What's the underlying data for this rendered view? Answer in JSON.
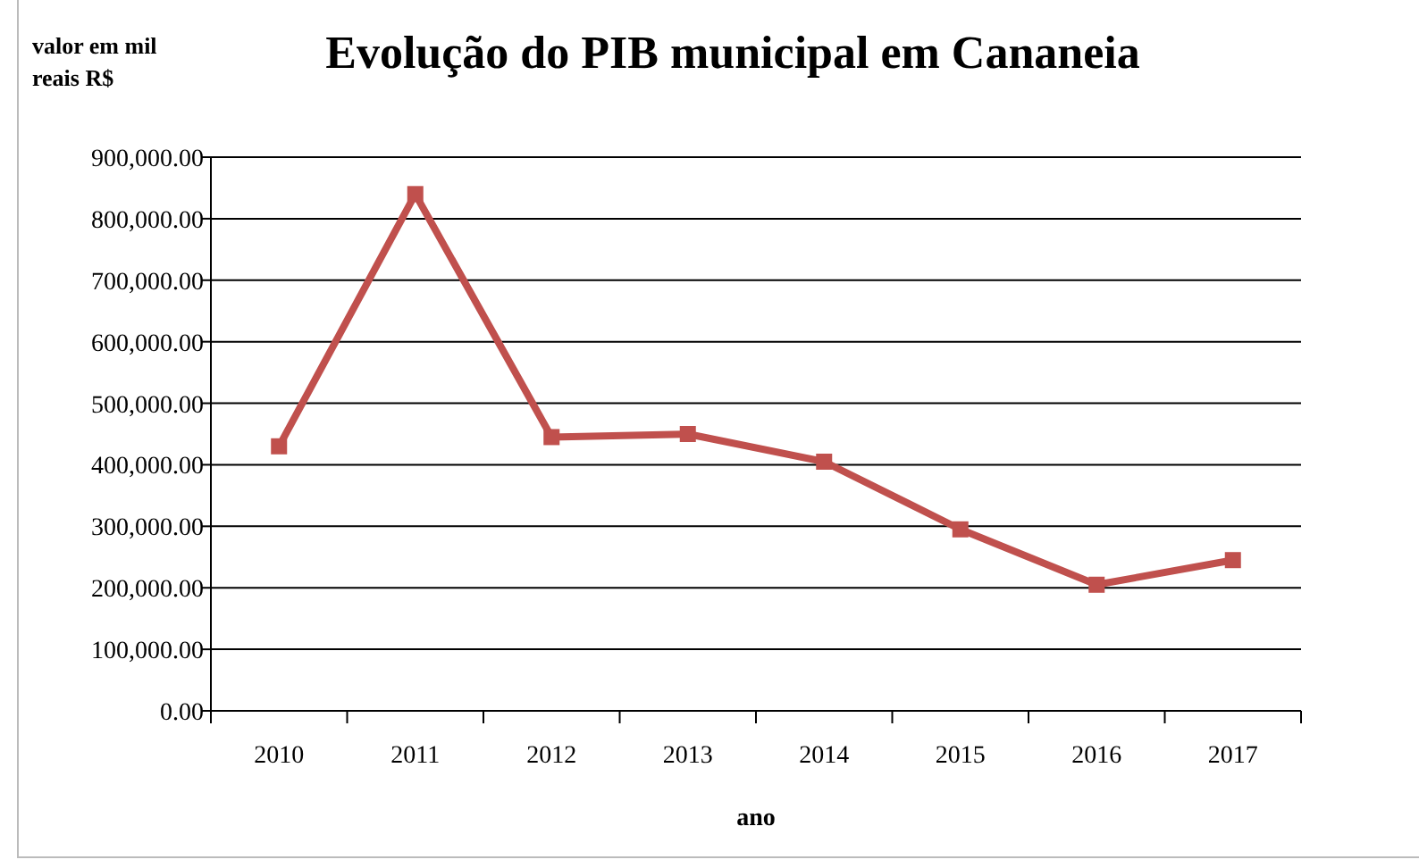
{
  "chart_data": {
    "type": "line",
    "title": "Evolução do PIB municipal em Cananeia",
    "ylabel": "valor em mil reais R$",
    "xlabel": "ano",
    "categories": [
      "2010",
      "2011",
      "2012",
      "2013",
      "2014",
      "2015",
      "2016",
      "2017"
    ],
    "series": [
      {
        "color": "#c0504d",
        "values": [
          430000,
          840000,
          445000,
          450000,
          405000,
          295000,
          205000,
          245000
        ]
      }
    ],
    "ylim": [
      0,
      900000
    ],
    "yticks": [
      {
        "value": 0,
        "label": "0.00"
      },
      {
        "value": 100000,
        "label": "100,000.00"
      },
      {
        "value": 200000,
        "label": "200,000.00"
      },
      {
        "value": 300000,
        "label": "300,000.00"
      },
      {
        "value": 400000,
        "label": "400,000.00"
      },
      {
        "value": 500000,
        "label": "500,000.00"
      },
      {
        "value": 600000,
        "label": "600,000.00"
      },
      {
        "value": 700000,
        "label": "700,000.00"
      },
      {
        "value": 800000,
        "label": "800,000.00"
      },
      {
        "value": 900000,
        "label": "900,000.00"
      }
    ],
    "grid": "y",
    "marker": "square",
    "line_style": "solid"
  }
}
